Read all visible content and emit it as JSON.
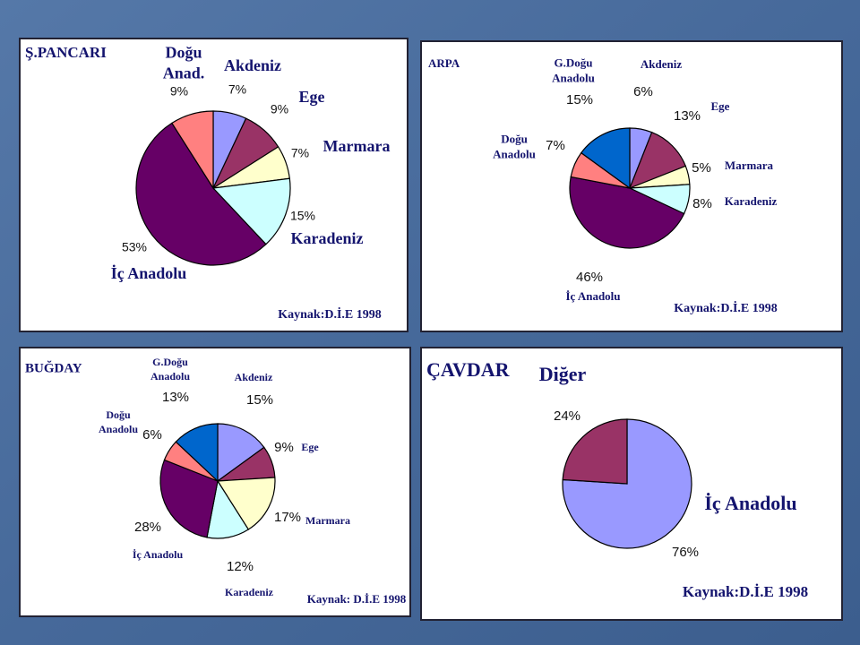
{
  "chart_data": [
    {
      "type": "pie",
      "title": "Ş.PANCARI",
      "source": "Kaynak:D.İ.E 1998",
      "categories": [
        "Akdeniz",
        "Ege",
        "Marmara",
        "Karadeniz",
        "İç Anadolu",
        "Doğu\nAnad."
      ],
      "values": [
        7,
        9,
        7,
        15,
        53,
        9
      ],
      "value_labels": [
        "7%",
        "9%",
        "7%",
        "15%",
        "53%",
        "9%"
      ],
      "colors": [
        "#9999ff",
        "#993366",
        "#ffffcc",
        "#ccffff",
        "#660066",
        "#ff8080"
      ]
    },
    {
      "type": "pie",
      "title": "ARPA",
      "source": "Kaynak:D.İ.E 1998",
      "categories": [
        "Akdeniz",
        "Ege",
        "Marmara",
        "Karadeniz",
        "İç Anadolu",
        "Doğu\nAnadolu",
        "G.Doğu\nAnadolu"
      ],
      "values": [
        6,
        13,
        5,
        8,
        46,
        7,
        15
      ],
      "value_labels": [
        "6%",
        "13%",
        "5%",
        "8%",
        "46%",
        "7%",
        "15%"
      ],
      "colors": [
        "#9999ff",
        "#993366",
        "#ffffcc",
        "#ccffff",
        "#660066",
        "#ff8080",
        "#0066cc"
      ]
    },
    {
      "type": "pie",
      "title": "BUĞDAY",
      "source": "Kaynak: D.İ.E 1998",
      "categories": [
        "Akdeniz",
        "Ege",
        "Marmara",
        "Karadeniz",
        "İç Anadolu",
        "Doğu\nAnadolu",
        "G.Doğu\nAnadolu"
      ],
      "values": [
        15,
        9,
        17,
        12,
        28,
        6,
        13
      ],
      "value_labels": [
        "15%",
        "9%",
        "17%",
        "12%",
        "28%",
        "6%",
        "13%"
      ],
      "colors": [
        "#9999ff",
        "#993366",
        "#ffffcc",
        "#ccffff",
        "#660066",
        "#ff8080",
        "#0066cc"
      ]
    },
    {
      "type": "pie",
      "title": "ÇAVDAR",
      "source": "Kaynak:D.İ.E 1998",
      "categories": [
        "İç Anadolu",
        "Diğer"
      ],
      "values": [
        76,
        24
      ],
      "value_labels": [
        "76%",
        "24%"
      ],
      "colors": [
        "#9999ff",
        "#993366"
      ]
    }
  ]
}
